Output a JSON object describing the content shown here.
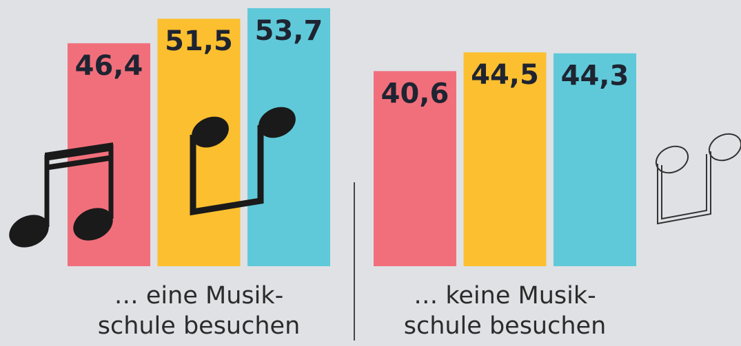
{
  "chart_data": {
    "type": "bar",
    "categories": [
      "… eine Musik-\nschule besuchen",
      "… keine Musik-\nschule besuchen"
    ],
    "series": [
      {
        "color": "#f16f7b",
        "values": [
          46.4,
          40.6
        ],
        "value_labels": [
          "46,4",
          "40,6"
        ]
      },
      {
        "color": "#fcbf2f",
        "values": [
          51.5,
          44.5
        ],
        "value_labels": [
          "51,5",
          "44,5"
        ]
      },
      {
        "color": "#5fc9d9",
        "values": [
          53.7,
          44.3
        ],
        "value_labels": [
          "53,7",
          "44,3"
        ]
      }
    ],
    "ylim": [
      0,
      55.4
    ]
  }
}
